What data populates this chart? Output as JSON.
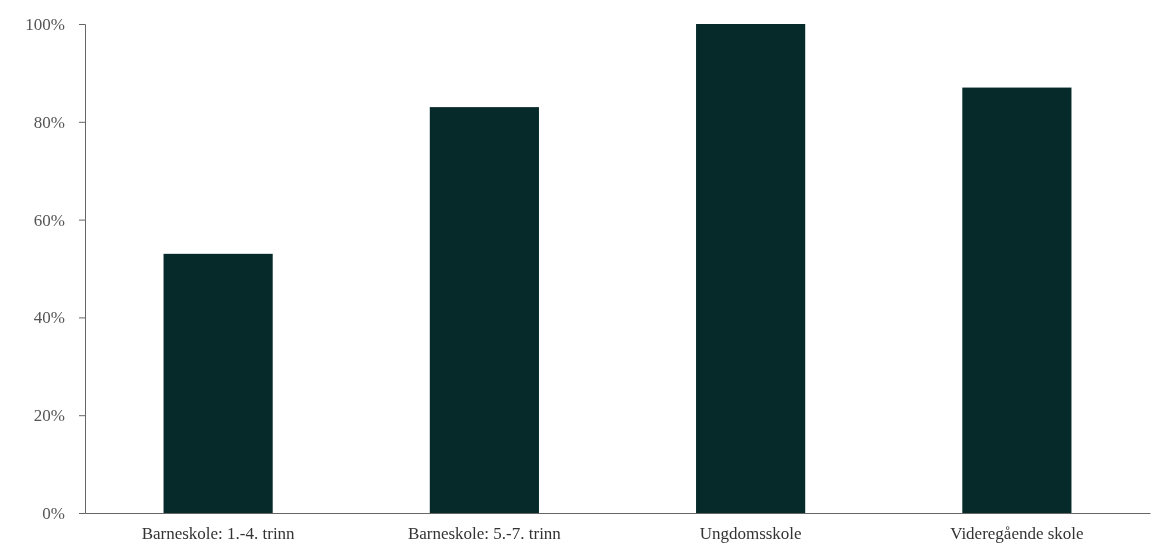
{
  "chart_data": {
    "type": "bar",
    "categories": [
      "Barneskole: 1.-4. trinn",
      "Barneskole: 5.-7. trinn",
      "Ungdomsskole",
      "Videregående skole"
    ],
    "values": [
      53,
      83,
      100,
      87
    ],
    "color": "#06292a",
    "ylim": [
      0,
      100
    ],
    "yticks": [
      {
        "value": 0,
        "label": "0%"
      },
      {
        "value": 20,
        "label": "20%"
      },
      {
        "value": 40,
        "label": "40%"
      },
      {
        "value": 60,
        "label": "60%"
      },
      {
        "value": 80,
        "label": "80%"
      },
      {
        "value": 100,
        "label": "100%"
      }
    ],
    "grid": false
  }
}
